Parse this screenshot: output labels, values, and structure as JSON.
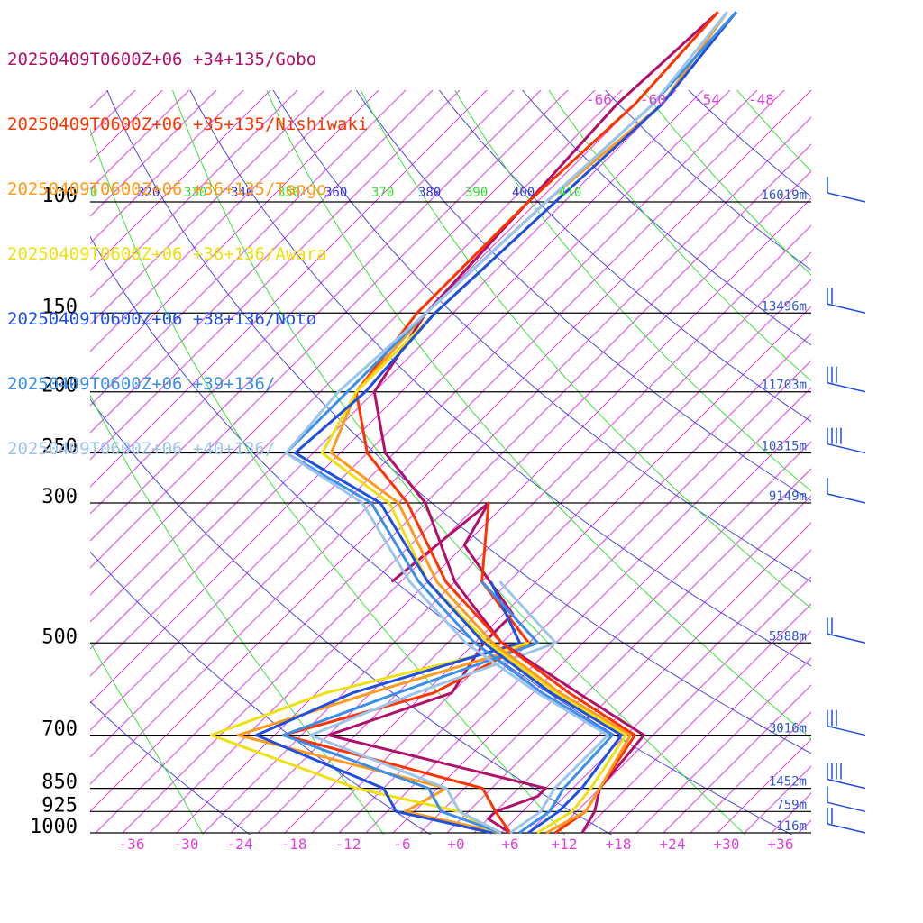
{
  "chart_data": {
    "type": "line",
    "legend": [
      {
        "label": "20250409T0600Z+06 +34+135/Gobo",
        "color": "#b0106a"
      },
      {
        "label": "20250409T0600Z+06 +35+135/Nishiwaki",
        "color": "#ff3300"
      },
      {
        "label": "20250409T0600Z+06 +36+135/Tango",
        "color": "#ff9a1a"
      },
      {
        "label": "20250409T0600Z+06 +36+136/Awara",
        "color": "#f0e010"
      },
      {
        "label": "20250409T0600Z+06 +38+136/Noto",
        "color": "#1f4fe0"
      },
      {
        "label": "20250409T0600Z+06 +39+136/",
        "color": "#3a8fe8"
      },
      {
        "label": "20250409T0600Z+06 +40+136/",
        "color": "#9cc4ec"
      }
    ],
    "pressure_labels": [
      "100",
      "150",
      "200",
      "250",
      "300",
      "500",
      "700",
      "850",
      "925",
      "1000"
    ],
    "pressure_levels": [
      100,
      150,
      200,
      250,
      300,
      500,
      700,
      850,
      925,
      1000
    ],
    "height_labels": [
      {
        "p": 100,
        "text": "16019m"
      },
      {
        "p": 150,
        "text": "13496m"
      },
      {
        "p": 200,
        "text": "11703m"
      },
      {
        "p": 250,
        "text": "10315m"
      },
      {
        "p": 300,
        "text": "9149m"
      },
      {
        "p": 500,
        "text": "5588m"
      },
      {
        "p": 700,
        "text": "3016m"
      },
      {
        "p": 850,
        "text": "1452m"
      },
      {
        "p": 925,
        "text": "759m"
      },
      {
        "p": 1000,
        "text": "116m"
      }
    ],
    "temp_ticks": [
      "-36",
      "-30",
      "-24",
      "-18",
      "-12",
      "-6",
      "+0",
      "+6",
      "+12",
      "+18",
      "+24",
      "+30",
      "+36"
    ],
    "temp_tick_values": [
      -36,
      -30,
      -24,
      -18,
      -12,
      -6,
      0,
      6,
      12,
      18,
      24,
      30,
      36
    ],
    "theta_labels": [
      {
        "text": "0",
        "color": "#2ee02e"
      },
      {
        "text": "320",
        "color": "#3333dd"
      },
      {
        "text": "330",
        "color": "#2ee02e"
      },
      {
        "text": "340",
        "color": "#3333dd"
      },
      {
        "text": "350",
        "color": "#2ee02e"
      },
      {
        "text": "360",
        "color": "#3333dd"
      },
      {
        "text": "370",
        "color": "#2ee02e"
      },
      {
        "text": "380",
        "color": "#3333dd"
      },
      {
        "text": "390",
        "color": "#2ee02e"
      },
      {
        "text": "400",
        "color": "#3333dd"
      },
      {
        "text": "410",
        "color": "#2ee02e"
      }
    ],
    "isotherm_top_labels": [
      "-66",
      "-60",
      "-54",
      "-48"
    ],
    "series": [
      {
        "name": "20250409T0600Z+06 +34+135/Gobo",
        "color": "#b0106a",
        "points": [
          [
            1000,
            14
          ],
          [
            925,
            13
          ],
          [
            850,
            11
          ],
          [
            700,
            10
          ],
          [
            600,
            -2
          ],
          [
            500,
            -16
          ],
          [
            400,
            -28
          ],
          [
            300,
            -40
          ],
          [
            250,
            -50
          ],
          [
            200,
            -58
          ],
          [
            150,
            -61
          ],
          [
            100,
            -62
          ],
          [
            70,
            -63
          ],
          [
            50,
            -62
          ]
        ]
      },
      {
        "name": "20250409T0600Z+06 +35+135/Nishiwaki",
        "color": "#ff3300",
        "points": [
          [
            1000,
            11
          ],
          [
            925,
            12
          ],
          [
            850,
            11
          ],
          [
            700,
            9
          ],
          [
            600,
            -3
          ],
          [
            500,
            -16
          ],
          [
            400,
            -29
          ],
          [
            300,
            -42
          ],
          [
            250,
            -52
          ],
          [
            200,
            -60
          ],
          [
            150,
            -62
          ],
          [
            100,
            -62
          ],
          [
            70,
            -61
          ],
          [
            50,
            -62
          ]
        ]
      },
      {
        "name": "20250409T0600Z+06 +36+135/Tango",
        "color": "#ff9a1a",
        "points": [
          [
            1000,
            10
          ],
          [
            925,
            12
          ],
          [
            850,
            11
          ],
          [
            700,
            8.5
          ],
          [
            600,
            -4
          ],
          [
            500,
            -17
          ],
          [
            400,
            -30
          ],
          [
            300,
            -43
          ],
          [
            250,
            -56
          ],
          [
            200,
            -60
          ],
          [
            150,
            -61
          ],
          [
            100,
            -60
          ],
          [
            70,
            -58
          ],
          [
            50,
            -61
          ]
        ]
      },
      {
        "name": "20250409T0600Z+06 +36+136/Awara",
        "color": "#f0e010",
        "points": [
          [
            1000,
            9
          ],
          [
            925,
            10.5
          ],
          [
            850,
            10
          ],
          [
            700,
            8
          ],
          [
            600,
            -4.5
          ],
          [
            500,
            -17.5
          ],
          [
            400,
            -31
          ],
          [
            300,
            -44
          ],
          [
            250,
            -57
          ],
          [
            200,
            -60
          ],
          [
            150,
            -60
          ],
          [
            100,
            -59
          ],
          [
            70,
            -58
          ],
          [
            50,
            -60
          ]
        ]
      },
      {
        "name": "20250409T0600Z+06 +38+136/Noto",
        "color": "#1f4fe0",
        "points": [
          [
            1000,
            8
          ],
          [
            925,
            9
          ],
          [
            850,
            9
          ],
          [
            700,
            7.5
          ],
          [
            600,
            -5
          ],
          [
            500,
            -18
          ],
          [
            400,
            -31
          ],
          [
            300,
            -45
          ],
          [
            250,
            -60
          ],
          [
            200,
            -59
          ],
          [
            150,
            -60
          ],
          [
            100,
            -59
          ],
          [
            70,
            -58
          ],
          [
            50,
            -60
          ]
        ]
      },
      {
        "name": "20250409T0600Z+06 +39+136/",
        "color": "#3a8fe8",
        "points": [
          [
            1000,
            7
          ],
          [
            925,
            8
          ],
          [
            850,
            7
          ],
          [
            700,
            6.5
          ],
          [
            600,
            -6
          ],
          [
            500,
            -19
          ],
          [
            400,
            -32
          ],
          [
            300,
            -46
          ],
          [
            250,
            -61
          ],
          [
            200,
            -61
          ],
          [
            150,
            -61
          ],
          [
            100,
            -60
          ],
          [
            70,
            -59
          ],
          [
            50,
            -60
          ]
        ]
      },
      {
        "name": "20250409T0600Z+06 +40+136/",
        "color": "#9cc4ec",
        "points": [
          [
            1000,
            6
          ],
          [
            925,
            7
          ],
          [
            850,
            6
          ],
          [
            700,
            6
          ],
          [
            600,
            -6.5
          ],
          [
            500,
            -20
          ],
          [
            400,
            -33
          ],
          [
            300,
            -47
          ],
          [
            250,
            -61
          ],
          [
            200,
            -62
          ],
          [
            150,
            -61
          ],
          [
            100,
            -60
          ],
          [
            70,
            -59
          ],
          [
            50,
            -61
          ]
        ]
      }
    ],
    "dewpoint_series": [
      {
        "name": "20250409T0600Z+06 +34+135/Gobo",
        "color": "#b0106a",
        "points": [
          [
            1000,
            6
          ],
          [
            950,
            2
          ],
          [
            925,
            2
          ],
          [
            875,
            5
          ],
          [
            850,
            5
          ],
          [
            700,
            -25
          ],
          [
            600,
            -16
          ],
          [
            500,
            -18
          ],
          [
            450,
            -18
          ],
          [
            350,
            -31
          ],
          [
            300,
            -33
          ],
          [
            400,
            -35
          ]
        ]
      },
      {
        "name": "20250409T0600Z+06 +35+135/Nishiwaki",
        "color": "#ff3300",
        "points": [
          [
            1000,
            6
          ],
          [
            925,
            2
          ],
          [
            850,
            -2
          ],
          [
            700,
            -30
          ],
          [
            600,
            -18
          ],
          [
            500,
            -13
          ],
          [
            400,
            -25
          ],
          [
            300,
            -33
          ]
        ]
      },
      {
        "name": "20250409T0600Z+06 +36+135/Tango",
        "color": "#ff9a1a",
        "points": [
          [
            1000,
            5
          ],
          [
            925,
            -8
          ],
          [
            850,
            -6
          ],
          [
            700,
            -35
          ],
          [
            600,
            -25
          ],
          [
            500,
            -12
          ],
          [
            400,
            -25
          ]
        ]
      },
      {
        "name": "20250409T0600Z+06 +36+136/Awara",
        "color": "#f0e010",
        "points": [
          [
            1000,
            4
          ],
          [
            925,
            -2
          ],
          [
            850,
            -16
          ],
          [
            700,
            -38
          ],
          [
            600,
            -30
          ],
          [
            500,
            -13
          ]
        ]
      },
      {
        "name": "20250409T0600Z+06 +38+136/Noto",
        "color": "#1f4fe0",
        "points": [
          [
            1000,
            4
          ],
          [
            925,
            -9
          ],
          [
            850,
            -13
          ],
          [
            700,
            -33
          ],
          [
            600,
            -27
          ],
          [
            500,
            -14
          ],
          [
            400,
            -24
          ]
        ]
      },
      {
        "name": "20250409T0600Z+06 +39+136/",
        "color": "#3a8fe8",
        "points": [
          [
            1000,
            5
          ],
          [
            925,
            -4
          ],
          [
            850,
            -8
          ],
          [
            700,
            -30
          ],
          [
            600,
            -22
          ],
          [
            500,
            -12
          ],
          [
            400,
            -25
          ]
        ]
      },
      {
        "name": "20250409T0600Z+06 +40+136/",
        "color": "#9cc4ec",
        "points": [
          [
            1000,
            5
          ],
          [
            925,
            -2
          ],
          [
            850,
            -6
          ],
          [
            700,
            -27
          ],
          [
            600,
            -20
          ],
          [
            500,
            -10
          ],
          [
            400,
            -23
          ]
        ]
      }
    ],
    "colors": {
      "isotherm": "#e040e0",
      "dry_adiabat": "#4a4ae0",
      "moist_adiabat": "#3ee03e",
      "isobar": "#000000",
      "height_label": "#3355cc",
      "pressure_label": "#000000",
      "barb": "#1f4fe0"
    }
  }
}
